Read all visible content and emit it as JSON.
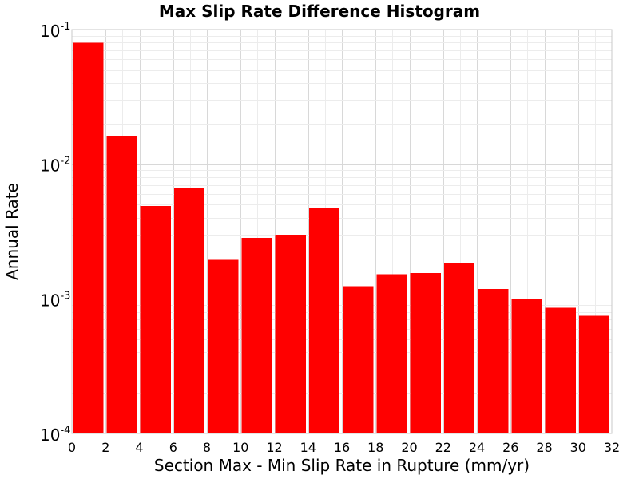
{
  "chart_data": {
    "type": "bar",
    "title": "Max Slip Rate Difference Histogram",
    "xlabel": "Section Max - Min Slip Rate in Rupture (mm/yr)",
    "ylabel": "Annual Rate",
    "yscale": "log",
    "xlim": [
      0,
      32
    ],
    "ylim": [
      0.0001,
      0.1
    ],
    "xticks": [
      "0",
      "2",
      "4",
      "6",
      "8",
      "10",
      "12",
      "14",
      "16",
      "18",
      "20",
      "22",
      "24",
      "26",
      "28",
      "30",
      "32"
    ],
    "yticks": [
      {
        "base": "10",
        "exp": "-4",
        "value": 0.0001
      },
      {
        "base": "10",
        "exp": "-3",
        "value": 0.001
      },
      {
        "base": "10",
        "exp": "-2",
        "value": 0.01
      },
      {
        "base": "10",
        "exp": "-1",
        "value": 0.1
      }
    ],
    "bar_color": "#ff0000",
    "grid": true,
    "bins": [
      {
        "x_start": 0,
        "x_end": 2,
        "value": 0.08
      },
      {
        "x_start": 2,
        "x_end": 4,
        "value": 0.0163
      },
      {
        "x_start": 4,
        "x_end": 6,
        "value": 0.0049
      },
      {
        "x_start": 6,
        "x_end": 8,
        "value": 0.0066
      },
      {
        "x_start": 8,
        "x_end": 10,
        "value": 0.00195
      },
      {
        "x_start": 10,
        "x_end": 12,
        "value": 0.00283
      },
      {
        "x_start": 12,
        "x_end": 14,
        "value": 0.003
      },
      {
        "x_start": 14,
        "x_end": 16,
        "value": 0.0047
      },
      {
        "x_start": 16,
        "x_end": 18,
        "value": 0.00124
      },
      {
        "x_start": 18,
        "x_end": 20,
        "value": 0.00152
      },
      {
        "x_start": 20,
        "x_end": 22,
        "value": 0.00155
      },
      {
        "x_start": 22,
        "x_end": 24,
        "value": 0.00185
      },
      {
        "x_start": 24,
        "x_end": 26,
        "value": 0.00118
      },
      {
        "x_start": 26,
        "x_end": 28,
        "value": 0.00099
      },
      {
        "x_start": 28,
        "x_end": 30,
        "value": 0.00086
      },
      {
        "x_start": 30,
        "x_end": 32,
        "value": 0.00075
      }
    ]
  }
}
